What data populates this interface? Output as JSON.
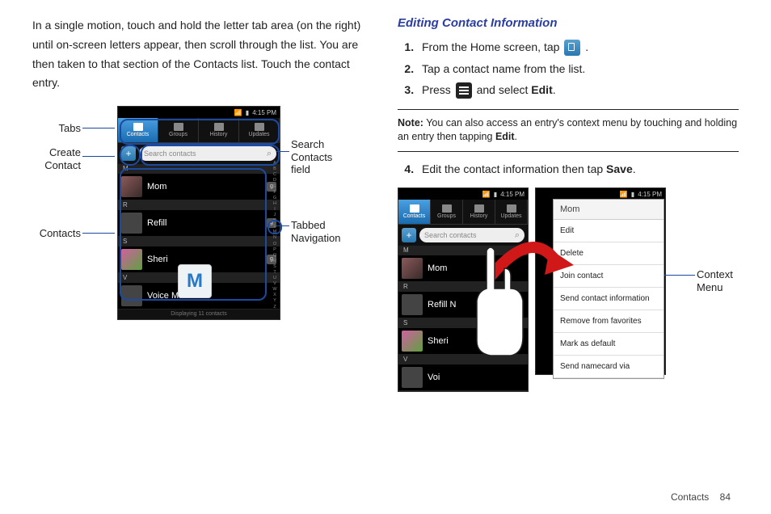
{
  "left": {
    "para": "In a single motion, touch and hold the letter tab area (on the right) until on-screen letters appear, then scroll through the list. You are then taken to that section of the Contacts list. Touch the contact entry.",
    "callouts": {
      "tabs": "Tabs",
      "create": "Create\nContact",
      "contacts": "Contacts",
      "search": "Search\nContacts\nfield",
      "tabbed": "Tabbed\nNavigation"
    }
  },
  "phone": {
    "time": "4:15 PM",
    "tabs": [
      "Contacts",
      "Groups",
      "History",
      "Updates"
    ],
    "search_placeholder": "Search contacts",
    "letter": "M",
    "rows": [
      {
        "section": "M"
      },
      {
        "name": "Mom",
        "avatar": "photo1",
        "g": true
      },
      {
        "section": "R"
      },
      {
        "name": "Refill",
        "avatar": "",
        "g": true
      },
      {
        "section": "S"
      },
      {
        "name": "Sheri",
        "avatar": "photo2",
        "g": true
      },
      {
        "section": "V"
      },
      {
        "name": "Voice Mail",
        "avatar": "",
        "g": false
      }
    ],
    "footer": "Displaying 11 contacts",
    "alpha": [
      "A",
      "B",
      "C",
      "D",
      "E",
      "F",
      "G",
      "H",
      "I",
      "J",
      "K",
      "L",
      "M",
      "N",
      "O",
      "P",
      "Q",
      "R",
      "S",
      "T",
      "U",
      "V",
      "W",
      "X",
      "Y",
      "Z"
    ]
  },
  "right": {
    "heading": "Editing Contact Information",
    "steps": {
      "s1a": "From the Home screen, tap ",
      "s1b": " .",
      "s2": "Tap a contact name from the list.",
      "s3a": "Press ",
      "s3b": " and select ",
      "s3c": "Edit",
      "s3d": ".",
      "s4a": "Edit the contact information then tap ",
      "s4b": "Save",
      "s4c": "."
    },
    "note_label": "Note:",
    "note": " You can also access an entry's context menu by touching and holding an entry then tapping ",
    "note_b": "Edit",
    "note_end": ".",
    "callout": "Context\nMenu"
  },
  "phone2_rows": [
    {
      "name": "Mom",
      "avatar": "photo1"
    },
    {
      "name": "Refill N",
      "avatar": ""
    },
    {
      "name": "Sheri",
      "avatar": "photo2"
    },
    {
      "name": "Voi",
      "avatar": ""
    }
  ],
  "context_menu": {
    "title": "Mom",
    "items": [
      "Edit",
      "Delete",
      "Join contact",
      "Send contact information",
      "Remove from favorites",
      "Mark as default",
      "Send namecard via"
    ]
  },
  "footer": {
    "section": "Contacts",
    "page": "84"
  }
}
